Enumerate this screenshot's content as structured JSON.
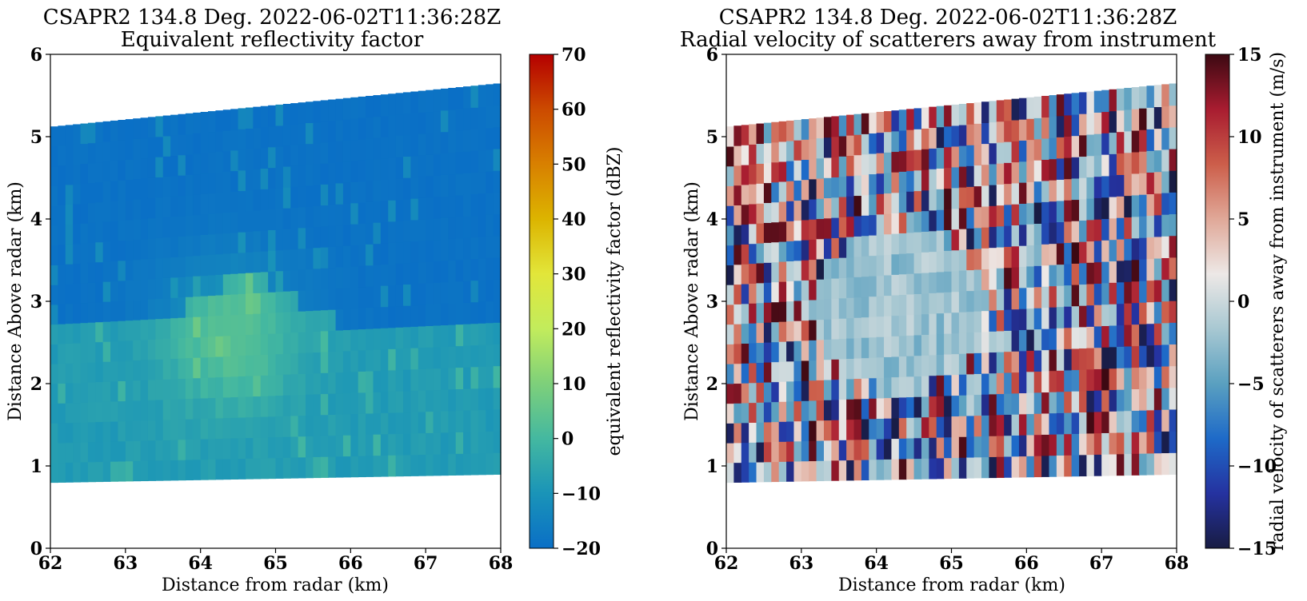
{
  "chart_data": [
    {
      "type": "heatmap",
      "title": "CSAPR2 134.8 Deg. 2022-06-02T11:36:28Z",
      "subtitle": "Equivalent reflectivity factor",
      "xlabel": "Distance from radar (km)",
      "ylabel": "Distance Above radar  (km)",
      "xlim": [
        62,
        68
      ],
      "ylim": [
        0,
        6
      ],
      "xticks": [
        "62",
        "63",
        "64",
        "65",
        "66",
        "67",
        "68"
      ],
      "yticks": [
        "0",
        "1",
        "2",
        "3",
        "4",
        "5",
        "6"
      ],
      "colorbar": {
        "label": "equivalent reflectivity factor (dBZ)",
        "range": [
          -20,
          70
        ],
        "ticks": [
          "−20",
          "−10",
          "0",
          "10",
          "20",
          "30",
          "40",
          "50",
          "60",
          "70"
        ],
        "colormap": "HomeyerRainbow",
        "colors": [
          "#0a6fc6",
          "#1a94b8",
          "#44b8a0",
          "#7ed07a",
          "#c2ec5c",
          "#e2e63a",
          "#dcb400",
          "#d88000",
          "#cc4a00",
          "#b40000"
        ]
      },
      "data_extent": {
        "bottom_height_km": [
          0.8,
          0.9
        ],
        "top_height_km": [
          5.12,
          5.65
        ]
      },
      "description_values_dbz": {
        "upper_layer": -20,
        "lower_layer": [
          -10,
          0
        ],
        "core_max": 5
      },
      "grid": false
    },
    {
      "type": "heatmap",
      "title": "CSAPR2 134.8 Deg. 2022-06-02T11:36:28Z",
      "subtitle": "Radial velocity of scatterers away from instrument",
      "xlabel": "Distance from radar (km)",
      "ylabel": "Distance Above radar  (km)",
      "xlim": [
        62,
        68
      ],
      "ylim": [
        0,
        6
      ],
      "xticks": [
        "62",
        "63",
        "64",
        "65",
        "66",
        "67",
        "68"
      ],
      "yticks": [
        "0",
        "1",
        "2",
        "3",
        "4",
        "5",
        "6"
      ],
      "colorbar": {
        "label": "radial velocity of scatterers away from instrument (m/s)",
        "range": [
          -15,
          15
        ],
        "ticks": [
          "−15",
          "−10",
          "−5",
          "0",
          "5",
          "10",
          "15"
        ],
        "colormap": "balance",
        "colors": [
          "#181c43",
          "#2532a0",
          "#1e6ac8",
          "#5aa0c0",
          "#a8c8d2",
          "#ede8e6",
          "#e0a898",
          "#cc5e4a",
          "#a81c30",
          "#3c0912"
        ]
      },
      "data_extent": {
        "bottom_height_km": [
          0.8,
          0.9
        ],
        "top_height_km": [
          5.12,
          5.65
        ]
      },
      "grid": false
    }
  ]
}
